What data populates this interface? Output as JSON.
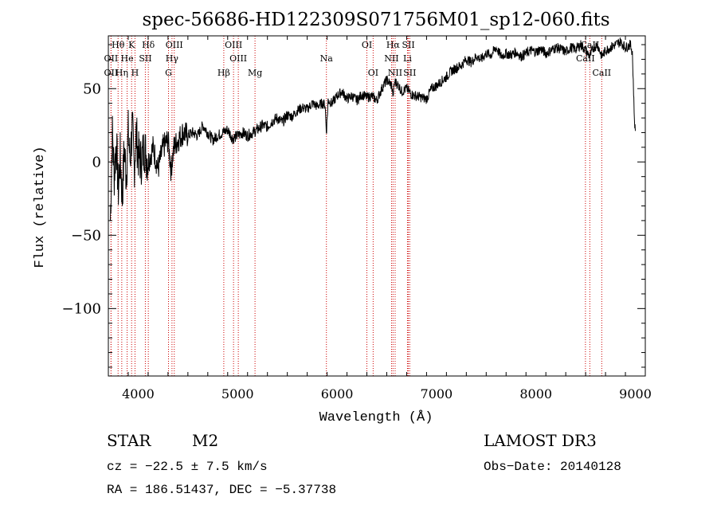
{
  "chart_data": {
    "type": "line",
    "title": "spec-56686-HD122309S071756M01_sp12-060.fits",
    "xlabel": "Wavelength (Å)",
    "ylabel": "Flux (relative)",
    "xlim": [
      3700,
      9100
    ],
    "ylim": [
      -146,
      86
    ],
    "x_ticks": [
      4000,
      5000,
      6000,
      7000,
      8000,
      9000
    ],
    "x_tick_labels": [
      "4000",
      "5000",
      "6000",
      "7000",
      "8000",
      "9000"
    ],
    "y_ticks": [
      -100,
      -50,
      0,
      50
    ],
    "y_tick_labels": [
      "−100",
      "−50",
      "0",
      "50"
    ],
    "series": [
      {
        "name": "flux",
        "x": [
          3720,
          3740,
          3760,
          3780,
          3800,
          3820,
          3840,
          3860,
          3880,
          3900,
          3920,
          3940,
          3960,
          3980,
          4000,
          4030,
          4060,
          4100,
          4150,
          4200,
          4250,
          4300,
          4330,
          4360,
          4400,
          4450,
          4500,
          4550,
          4600,
          4650,
          4700,
          4750,
          4800,
          4850,
          4900,
          4950,
          5000,
          5050,
          5100,
          5150,
          5200,
          5250,
          5300,
          5350,
          5400,
          5450,
          5500,
          5550,
          5600,
          5650,
          5700,
          5750,
          5800,
          5850,
          5880,
          5893,
          5910,
          5950,
          6000,
          6050,
          6100,
          6150,
          6200,
          6250,
          6300,
          6350,
          6400,
          6450,
          6500,
          6550,
          6563,
          6580,
          6620,
          6650,
          6700,
          6750,
          6800,
          6850,
          6900,
          6950,
          7000,
          7050,
          7100,
          7150,
          7200,
          7250,
          7300,
          7350,
          7400,
          7450,
          7500,
          7550,
          7600,
          7650,
          7700,
          7750,
          7800,
          7850,
          7900,
          7950,
          8000,
          8050,
          8100,
          8150,
          8200,
          8250,
          8300,
          8350,
          8400,
          8450,
          8500,
          8542,
          8580,
          8620,
          8662,
          8700,
          8750,
          8800,
          8850,
          8900,
          8950,
          8970,
          8990,
          9000
        ],
        "y": [
          -40,
          20,
          -10,
          15,
          -20,
          5,
          -25,
          10,
          -10,
          20,
          0,
          25,
          -5,
          20,
          5,
          0,
          10,
          0,
          10,
          -5,
          10,
          15,
          -5,
          10,
          15,
          20,
          18,
          20,
          18,
          25,
          20,
          15,
          18,
          20,
          22,
          16,
          18,
          20,
          18,
          20,
          22,
          25,
          24,
          28,
          30,
          27,
          32,
          31,
          35,
          37,
          36,
          40,
          38,
          40,
          39,
          20,
          42,
          40,
          45,
          48,
          43,
          45,
          42,
          46,
          44,
          45,
          42,
          50,
          56,
          52,
          45,
          55,
          52,
          48,
          50,
          46,
          45,
          44,
          43,
          50,
          52,
          55,
          58,
          62,
          64,
          66,
          70,
          68,
          72,
          70,
          74,
          73,
          78,
          72,
          74,
          73,
          75,
          72,
          74,
          76,
          75,
          77,
          74,
          76,
          78,
          77,
          75,
          78,
          77,
          80,
          76,
          72,
          78,
          80,
          72,
          76,
          78,
          80,
          82,
          78,
          80,
          75,
          30,
          20
        ]
      }
    ],
    "lines": [
      {
        "name": "OII",
        "wavelength": 3727,
        "row": 3
      },
      {
        "name": "OII",
        "wavelength": 3727,
        "row": 2
      },
      {
        "name": "Hθ",
        "wavelength": 3798,
        "row": 1
      },
      {
        "name": "Hη",
        "wavelength": 3835,
        "row": 3
      },
      {
        "name": "K",
        "wavelength": 3934,
        "row": 1
      },
      {
        "name": "He",
        "wavelength": 3889,
        "row": 2
      },
      {
        "name": "H",
        "wavelength": 3968,
        "row": 3
      },
      {
        "name": "Hδ",
        "wavelength": 4102,
        "row": 1
      },
      {
        "name": "SII",
        "wavelength": 4072,
        "row": 2
      },
      {
        "name": "OIII",
        "wavelength": 4363,
        "row": 1
      },
      {
        "name": "Hγ",
        "wavelength": 4340,
        "row": 2
      },
      {
        "name": "G",
        "wavelength": 4305,
        "row": 3
      },
      {
        "name": "Hβ",
        "wavelength": 4861,
        "row": 3
      },
      {
        "name": "OIII",
        "wavelength": 4959,
        "row": 1
      },
      {
        "name": "OIII",
        "wavelength": 5007,
        "row": 2
      },
      {
        "name": "Mg",
        "wavelength": 5175,
        "row": 3
      },
      {
        "name": "Na",
        "wavelength": 5893,
        "row": 2
      },
      {
        "name": "OI",
        "wavelength": 6300,
        "row": 1
      },
      {
        "name": "OI",
        "wavelength": 6363,
        "row": 3
      },
      {
        "name": "Hα",
        "wavelength": 6563,
        "row": 1
      },
      {
        "name": "NII",
        "wavelength": 6548,
        "row": 2
      },
      {
        "name": "NII",
        "wavelength": 6584,
        "row": 3
      },
      {
        "name": "SII",
        "wavelength": 6717,
        "row": 1
      },
      {
        "name": "Li",
        "wavelength": 6708,
        "row": 2
      },
      {
        "name": "SII",
        "wavelength": 6731,
        "row": 3
      },
      {
        "name": "CaII",
        "wavelength": 8542,
        "row": 1
      },
      {
        "name": "CaII",
        "wavelength": 8498,
        "row": 2
      },
      {
        "name": "CaII",
        "wavelength": 8662,
        "row": 3
      }
    ]
  },
  "info": {
    "class": "STAR",
    "subclass": "M2",
    "survey": "LAMOST DR3",
    "cz": "cz = −22.5 ± 7.5 km/s",
    "obs_date": "Obs−Date: 20140128",
    "coords": "RA = 186.51437, DEC =  −5.37738"
  },
  "colors": {
    "spectrum": "#000000",
    "line_marker": "#cc0000",
    "axes": "#000000"
  }
}
